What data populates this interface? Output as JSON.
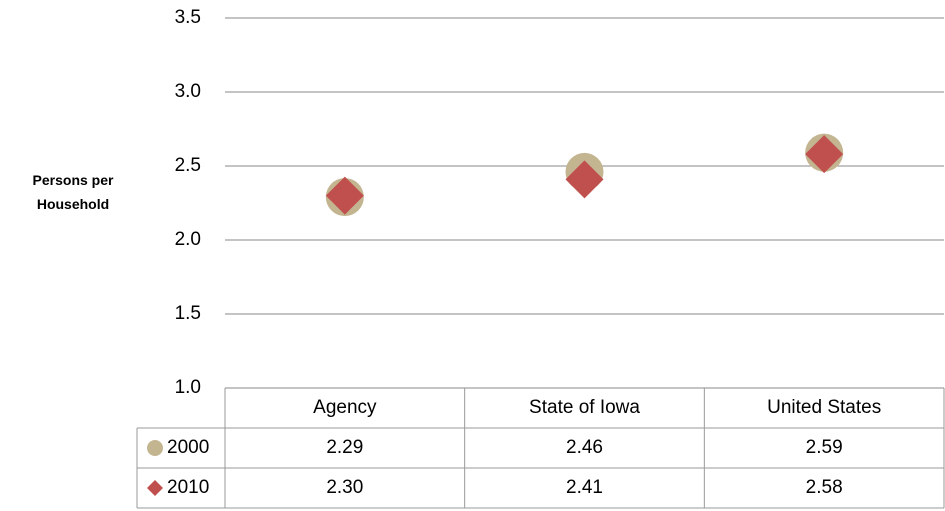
{
  "chart_data": {
    "type": "scatter",
    "y_label": "Persons per Household",
    "categories": [
      "Agency",
      "State of Iowa",
      "United States"
    ],
    "series": [
      {
        "name": "2000",
        "color": "#c4b591",
        "marker": "circle",
        "values": [
          2.29,
          2.46,
          2.59
        ],
        "value_labels": [
          "2.29",
          "2.46",
          "2.59"
        ]
      },
      {
        "name": "2010",
        "color": "#c0504d",
        "marker": "diamond",
        "values": [
          2.3,
          2.41,
          2.58
        ],
        "value_labels": [
          "2.30",
          "2.41",
          "2.58"
        ]
      }
    ],
    "ylim": [
      1,
      3.5
    ],
    "yticks": [
      {
        "value": 1,
        "label": "1.0"
      },
      1.5,
      {
        "value": 2,
        "label": "2.0"
      },
      2.5,
      {
        "value": 3,
        "label": "3.0"
      },
      3.5
    ],
    "grid": true,
    "data_table": true
  }
}
